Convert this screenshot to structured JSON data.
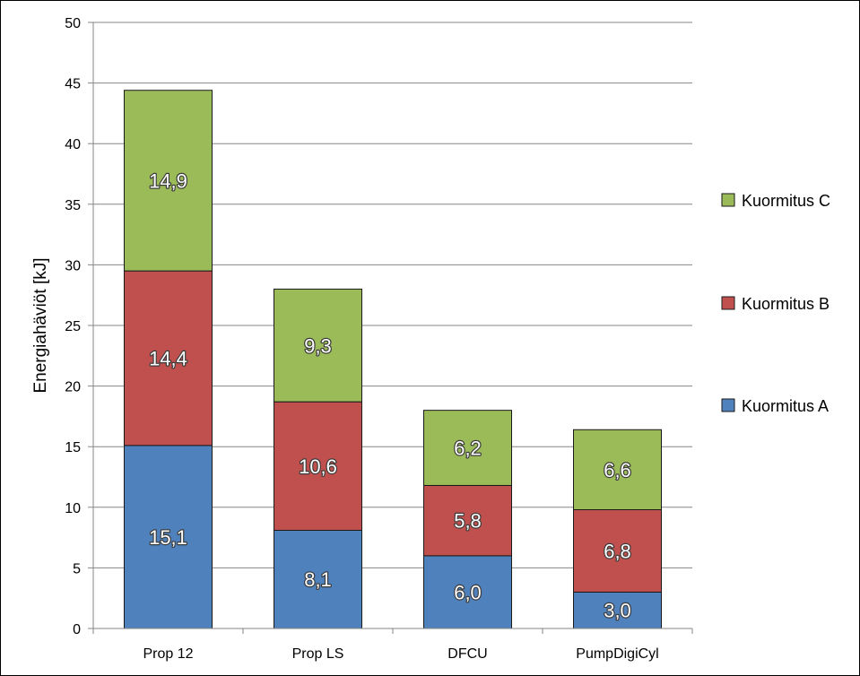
{
  "chart_data": {
    "type": "bar",
    "stacked": true,
    "categories": [
      "Prop 12",
      "Prop LS",
      "DFCU",
      "PumpDigiCyl"
    ],
    "series": [
      {
        "name": "Kuormitus A",
        "color": "#4F81BD",
        "values": [
          15.1,
          8.1,
          6.0,
          3.0
        ],
        "labels": [
          "15,1",
          "8,1",
          "6,0",
          "3,0"
        ]
      },
      {
        "name": "Kuormitus B",
        "color": "#C0504D",
        "values": [
          14.4,
          10.6,
          5.8,
          6.8
        ],
        "labels": [
          "14,4",
          "10,6",
          "5,8",
          "6,8"
        ]
      },
      {
        "name": "Kuormitus C",
        "color": "#9BBB59",
        "values": [
          14.9,
          9.3,
          6.2,
          6.6
        ],
        "labels": [
          "14,9",
          "9,3",
          "6,2",
          "6,6"
        ]
      }
    ],
    "title": "",
    "xlabel": "",
    "ylabel": "Energiahäviöt [kJ]",
    "ylim": [
      0,
      50
    ],
    "yticks": [
      0,
      5,
      10,
      15,
      20,
      25,
      30,
      35,
      40,
      45,
      50
    ],
    "ytick_labels": [
      "0",
      "5",
      "10",
      "15",
      "20",
      "25",
      "30",
      "35",
      "40",
      "45",
      "50"
    ],
    "grid": true,
    "legend_position": "right",
    "legend_order": [
      "Kuormitus C",
      "Kuormitus B",
      "Kuormitus A"
    ]
  }
}
